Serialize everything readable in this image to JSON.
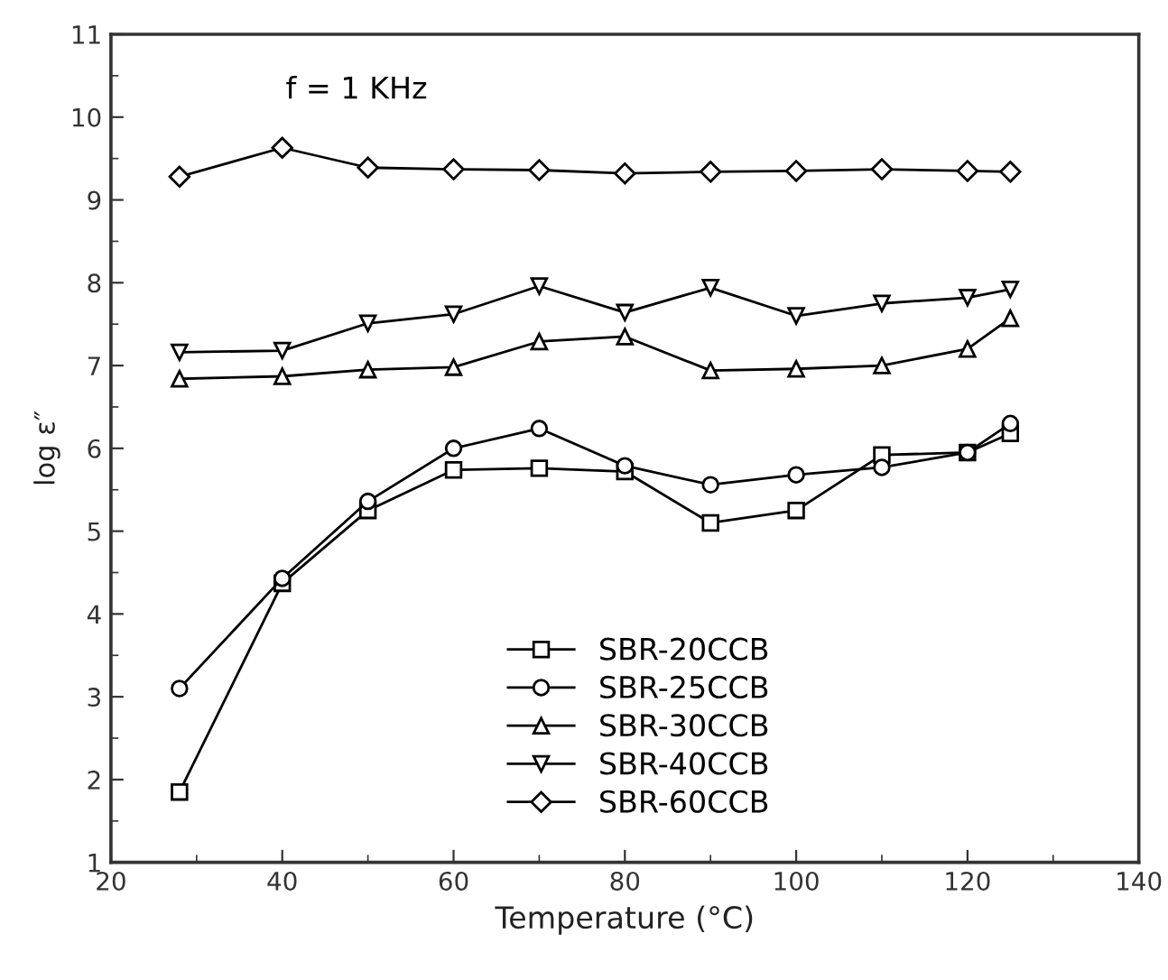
{
  "chart_data": {
    "type": "line",
    "xlabel": "Temperature (°C)",
    "ylabel": "log ε″",
    "annotations": [
      "f = 1 KHz"
    ],
    "xlim": [
      20,
      140
    ],
    "xticks": [
      20,
      40,
      60,
      80,
      100,
      120,
      140
    ],
    "ylim": [
      1,
      11
    ],
    "yticks": [
      1,
      2,
      3,
      4,
      5,
      6,
      7,
      8,
      9,
      10,
      11
    ],
    "x": [
      28,
      40,
      50,
      60,
      70,
      80,
      90,
      100,
      110,
      120,
      125
    ],
    "grid": false,
    "legend": "bottom right",
    "line_style": "solid",
    "series": [
      {
        "name": "SBR-20CCB",
        "color": "#000000",
        "marker": "square",
        "values": [
          1.85,
          4.37,
          5.25,
          5.74,
          5.76,
          5.72,
          5.1,
          5.25,
          5.92,
          5.95,
          6.18
        ]
      },
      {
        "name": "SBR-25CCB",
        "color": "#000000",
        "marker": "circle",
        "values": [
          3.1,
          4.43,
          5.36,
          6.0,
          6.24,
          5.79,
          5.56,
          5.68,
          5.77,
          5.95,
          6.3
        ]
      },
      {
        "name": "SBR-30CCB",
        "color": "#000000",
        "marker": "triangle",
        "values": [
          6.84,
          6.87,
          6.95,
          6.98,
          7.29,
          7.35,
          6.94,
          6.96,
          7.0,
          7.2,
          7.57
        ]
      },
      {
        "name": "SBR-40CCB",
        "color": "#000000",
        "marker": "triangle_down",
        "values": [
          7.16,
          7.18,
          7.51,
          7.62,
          7.96,
          7.64,
          7.94,
          7.6,
          7.75,
          7.82,
          7.92
        ]
      },
      {
        "name": "SBR-60CCB",
        "color": "#000000",
        "marker": "diamond",
        "values": [
          9.28,
          9.63,
          9.39,
          9.37,
          9.36,
          9.32,
          9.34,
          9.35,
          9.37,
          9.35,
          9.34
        ]
      }
    ]
  }
}
